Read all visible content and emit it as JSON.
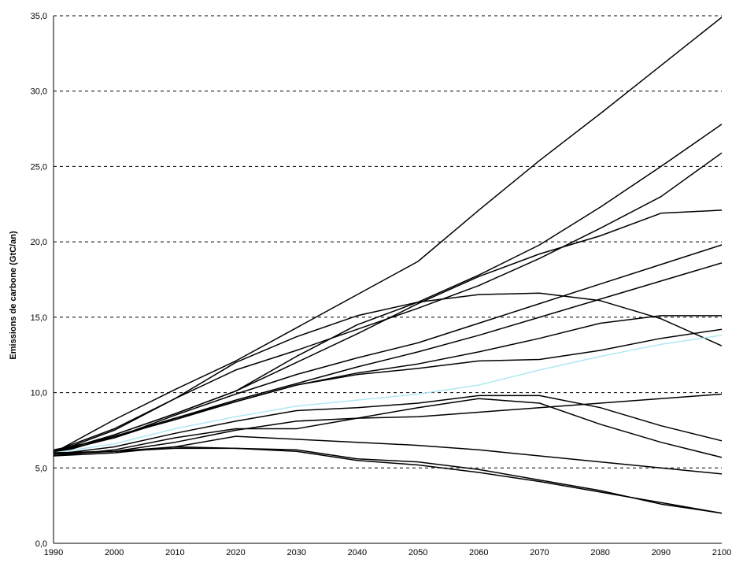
{
  "chart_data": {
    "type": "line",
    "title": "",
    "xlabel": "",
    "ylabel": "Emissions de carbone (GtC/an)",
    "xlim": [
      1990,
      2100
    ],
    "ylim": [
      0,
      35
    ],
    "grid": "horizontal-dashed",
    "legend": "none",
    "x": [
      1990,
      2000,
      2010,
      2020,
      2030,
      2040,
      2050,
      2060,
      2070,
      2080,
      2090,
      2100
    ],
    "x_tick_labels": [
      "1990",
      "2000",
      "2010",
      "2020",
      "2030",
      "2040",
      "2050",
      "2060",
      "2070",
      "2080",
      "2090",
      "2100"
    ],
    "y_ticks": [
      0,
      5,
      10,
      15,
      20,
      25,
      30,
      35
    ],
    "y_tick_labels": [
      "0,0",
      "5,0",
      "10,0",
      "15,0",
      "20,0",
      "25,0",
      "30,0",
      "35,0"
    ],
    "series": [
      {
        "color": "#000000",
        "values": [
          6.0,
          8.2,
          10.2,
          12.1,
          14.3,
          16.5,
          18.7,
          22.1,
          25.4,
          28.5,
          31.7,
          34.9
        ]
      },
      {
        "color": "#000000",
        "values": [
          6.0,
          7.5,
          9.6,
          12.0,
          13.7,
          15.1,
          16.0,
          17.8,
          19.8,
          22.3,
          25.0,
          27.8
        ]
      },
      {
        "color": "#000000",
        "values": [
          6.1,
          7.6,
          9.6,
          11.5,
          12.8,
          14.2,
          15.6,
          17.1,
          18.9,
          20.9,
          23.0,
          25.9
        ]
      },
      {
        "color": "#000000",
        "values": [
          6.0,
          7.2,
          8.6,
          10.1,
          12.0,
          13.9,
          15.9,
          17.7,
          19.2,
          20.4,
          21.9,
          22.1
        ]
      },
      {
        "color": "#000000",
        "values": [
          6.2,
          7.0,
          8.5,
          9.9,
          11.2,
          12.3,
          13.3,
          14.6,
          15.9,
          17.2,
          18.5,
          19.8
        ]
      },
      {
        "color": "#000000",
        "values": [
          5.9,
          7.1,
          8.3,
          9.5,
          10.6,
          11.7,
          12.7,
          13.8,
          15.0,
          16.2,
          17.4,
          18.6
        ]
      },
      {
        "color": "#000000",
        "values": [
          6.0,
          7.2,
          8.6,
          10.1,
          12.4,
          14.5,
          16.0,
          16.5,
          16.6,
          16.1,
          14.9,
          13.1
        ]
      },
      {
        "color": "#000000",
        "values": [
          6.1,
          7.1,
          8.2,
          9.4,
          10.5,
          11.2,
          11.6,
          12.1,
          12.2,
          12.8,
          13.6,
          14.2
        ]
      },
      {
        "color": "#000000",
        "values": [
          6.0,
          7.0,
          8.3,
          9.4,
          10.5,
          11.3,
          11.9,
          12.7,
          13.6,
          14.6,
          15.1,
          15.1
        ]
      },
      {
        "color": "#aee8f2",
        "values": [
          6.0,
          6.6,
          7.6,
          8.4,
          9.1,
          9.5,
          9.9,
          10.5,
          11.5,
          12.4,
          13.2,
          13.8
        ]
      },
      {
        "color": "#000000",
        "values": [
          5.9,
          6.4,
          7.3,
          8.1,
          8.8,
          9.0,
          9.3,
          9.8,
          9.8,
          9.0,
          7.8,
          6.8
        ]
      },
      {
        "color": "#000000",
        "values": [
          5.8,
          6.2,
          7.0,
          7.6,
          7.6,
          8.3,
          9.0,
          9.6,
          9.3,
          7.9,
          6.7,
          5.7
        ]
      },
      {
        "color": "#000000",
        "values": [
          6.0,
          6.1,
          6.7,
          7.5,
          8.1,
          8.3,
          8.4,
          8.7,
          9.0,
          9.3,
          9.6,
          9.9
        ]
      },
      {
        "color": "#000000",
        "values": [
          5.8,
          6.0,
          6.4,
          7.1,
          6.9,
          6.7,
          6.5,
          6.2,
          5.8,
          5.4,
          5.0,
          4.6
        ]
      },
      {
        "color": "#000000",
        "values": [
          5.9,
          6.1,
          6.3,
          6.3,
          6.1,
          5.5,
          5.2,
          4.7,
          4.1,
          3.4,
          2.7,
          2.0
        ]
      },
      {
        "color": "#000000",
        "values": [
          6.0,
          6.1,
          6.4,
          6.3,
          6.2,
          5.6,
          5.4,
          4.9,
          4.2,
          3.5,
          2.6,
          2.0
        ]
      }
    ]
  }
}
